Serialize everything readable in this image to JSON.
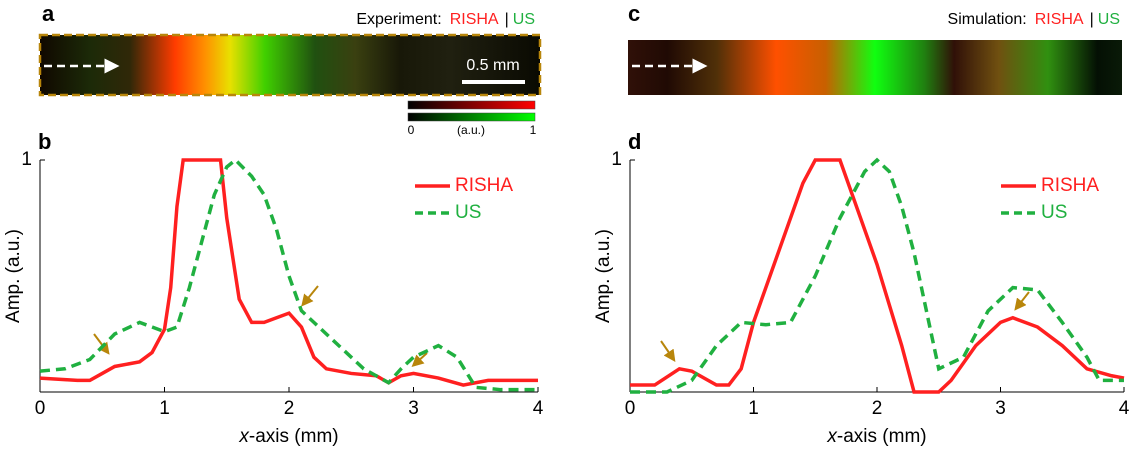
{
  "panel_a": {
    "label": "a",
    "title": "Experiment:",
    "name1": "RISHA",
    "sep": "|",
    "name2": "US",
    "scale_bar": "0.5 mm",
    "colorbar_min": "0",
    "colorbar_unit": "(a.u.)",
    "colorbar_max": "1"
  },
  "panel_c": {
    "label": "c",
    "title": "Simulation:",
    "name1": "RISHA",
    "sep": "|",
    "name2": "US"
  },
  "chart_data": [
    {
      "type": "line",
      "panel_label": "b",
      "xlabel_var": "x",
      "xlabel": "-axis (mm)",
      "ylabel": "Amp. (a.u.)",
      "xlim": [
        0,
        4
      ],
      "ylim": [
        0,
        1
      ],
      "xticks": [
        0,
        1,
        2,
        3,
        4
      ],
      "yticks": [
        1
      ],
      "legend": "upper right",
      "series": [
        {
          "name": "RISHA",
          "color": "#ff2020",
          "linestyle": "solid",
          "x": [
            0,
            0.3,
            0.4,
            0.5,
            0.6,
            0.8,
            0.9,
            1.0,
            1.05,
            1.1,
            1.15,
            1.45,
            1.5,
            1.6,
            1.7,
            1.8,
            1.9,
            2.0,
            2.1,
            2.2,
            2.3,
            2.5,
            2.7,
            2.8,
            2.9,
            3.0,
            3.2,
            3.4,
            3.6,
            3.8,
            4.0
          ],
          "values": [
            0.06,
            0.05,
            0.05,
            0.08,
            0.11,
            0.13,
            0.17,
            0.27,
            0.45,
            0.8,
            1.0,
            1.0,
            0.75,
            0.4,
            0.3,
            0.3,
            0.32,
            0.34,
            0.28,
            0.15,
            0.1,
            0.08,
            0.07,
            0.04,
            0.07,
            0.08,
            0.06,
            0.03,
            0.05,
            0.05,
            0.05
          ]
        },
        {
          "name": "US",
          "color": "#20b040",
          "linestyle": "dashed",
          "x": [
            0,
            0.2,
            0.4,
            0.6,
            0.8,
            0.9,
            1.0,
            1.1,
            1.2,
            1.3,
            1.4,
            1.5,
            1.57,
            1.7,
            1.8,
            1.9,
            2.0,
            2.1,
            2.2,
            2.4,
            2.6,
            2.8,
            2.9,
            3.0,
            3.2,
            3.35,
            3.5,
            3.7,
            4.0
          ],
          "values": [
            0.09,
            0.1,
            0.14,
            0.25,
            0.3,
            0.28,
            0.26,
            0.28,
            0.45,
            0.65,
            0.85,
            0.97,
            1.0,
            0.93,
            0.85,
            0.7,
            0.5,
            0.35,
            0.3,
            0.2,
            0.1,
            0.04,
            0.1,
            0.15,
            0.2,
            0.15,
            0.02,
            0.01,
            0.01
          ]
        }
      ]
    },
    {
      "type": "line",
      "panel_label": "d",
      "xlabel_var": "x",
      "xlabel": "-axis (mm)",
      "ylabel": "Amp. (a.u.)",
      "xlim": [
        0,
        4
      ],
      "ylim": [
        0,
        1
      ],
      "xticks": [
        0,
        1,
        2,
        3,
        4
      ],
      "yticks": [
        1
      ],
      "legend": "upper right",
      "series": [
        {
          "name": "RISHA",
          "color": "#ff2020",
          "linestyle": "solid",
          "x": [
            0,
            0.2,
            0.4,
            0.5,
            0.7,
            0.8,
            0.9,
            1.0,
            1.2,
            1.4,
            1.5,
            1.7,
            1.8,
            2.0,
            2.2,
            2.3,
            2.5,
            2.6,
            2.8,
            3.0,
            3.1,
            3.3,
            3.5,
            3.7,
            3.9,
            4.0
          ],
          "values": [
            0.03,
            0.03,
            0.1,
            0.09,
            0.03,
            0.03,
            0.1,
            0.3,
            0.6,
            0.9,
            1.0,
            1.0,
            0.85,
            0.55,
            0.2,
            0.0,
            0.0,
            0.05,
            0.2,
            0.3,
            0.32,
            0.28,
            0.2,
            0.1,
            0.07,
            0.06
          ]
        },
        {
          "name": "US",
          "color": "#20b040",
          "linestyle": "dashed",
          "x": [
            0,
            0.3,
            0.5,
            0.7,
            0.9,
            1.1,
            1.3,
            1.5,
            1.7,
            1.9,
            2.0,
            2.1,
            2.2,
            2.3,
            2.4,
            2.5,
            2.7,
            2.9,
            3.1,
            3.3,
            3.5,
            3.7,
            3.8,
            3.9,
            4.0
          ],
          "values": [
            0.0,
            0.0,
            0.05,
            0.2,
            0.3,
            0.29,
            0.3,
            0.5,
            0.75,
            0.95,
            1.0,
            0.95,
            0.8,
            0.6,
            0.35,
            0.1,
            0.15,
            0.35,
            0.45,
            0.44,
            0.3,
            0.15,
            0.05,
            0.05,
            0.05
          ]
        }
      ]
    }
  ]
}
